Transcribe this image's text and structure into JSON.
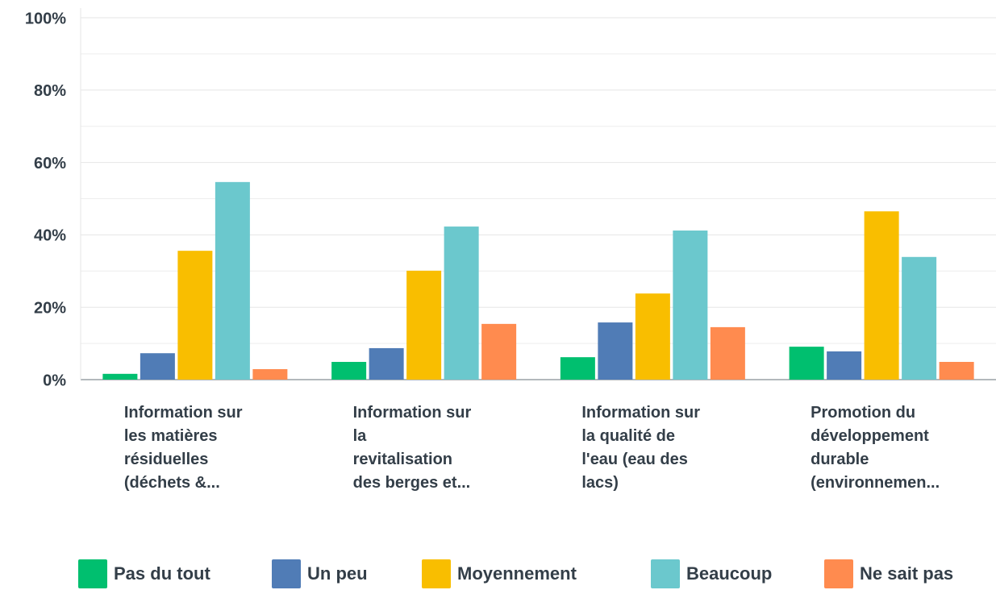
{
  "chart_data": {
    "type": "bar",
    "categories": [
      [
        "Information sur",
        "les matières",
        "résiduelles",
        "(déchets &..."
      ],
      [
        "Information sur",
        "la",
        "revitalisation",
        "des berges et..."
      ],
      [
        "Information sur",
        "la qualité de",
        "l'eau (eau des",
        "lacs)"
      ],
      [
        "Promotion du",
        "développement",
        "durable",
        "(environnemen..."
      ]
    ],
    "series": [
      {
        "name": "Pas du tout",
        "color": "#00bf6f",
        "values": [
          1.6,
          4.9,
          6.2,
          9.1
        ]
      },
      {
        "name": "Un peu",
        "color": "#507cb6",
        "values": [
          7.3,
          8.7,
          15.8,
          7.8
        ]
      },
      {
        "name": "Moyennement",
        "color": "#f9be00",
        "values": [
          35.6,
          30.1,
          23.8,
          46.5
        ]
      },
      {
        "name": "Beaucoup",
        "color": "#6bc8cd",
        "values": [
          54.6,
          42.3,
          41.2,
          33.9
        ]
      },
      {
        "name": "Ne sait pas",
        "color": "#ff8b4f",
        "values": [
          2.9,
          15.4,
          14.5,
          4.9
        ]
      }
    ],
    "ylim": [
      0,
      100
    ],
    "yticks": [
      {
        "value": 0,
        "label": "0%"
      },
      {
        "value": 20,
        "label": "20%"
      },
      {
        "value": 40,
        "label": "40%"
      },
      {
        "value": 60,
        "label": "60%"
      },
      {
        "value": 80,
        "label": "80%"
      },
      {
        "value": 100,
        "label": "100%"
      }
    ],
    "yticks_minor": [
      10,
      30,
      50,
      70,
      90
    ],
    "grid": true,
    "legend": "bottom"
  }
}
